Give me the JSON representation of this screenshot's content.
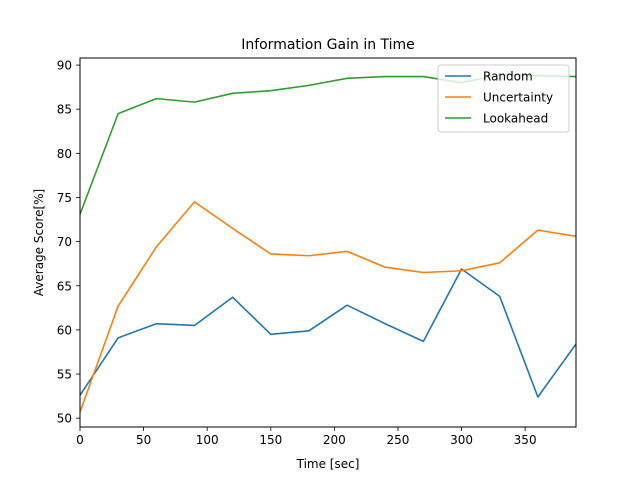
{
  "chart_data": {
    "type": "line",
    "title": "Information Gain in Time",
    "xlabel": "Time [sec]",
    "ylabel": "Average Score[%]",
    "xlim": [
      0,
      390
    ],
    "ylim": [
      49,
      90.8
    ],
    "x_ticks": [
      0,
      50,
      100,
      150,
      200,
      250,
      300,
      350
    ],
    "y_ticks": [
      50,
      55,
      60,
      65,
      70,
      75,
      80,
      85,
      90
    ],
    "grid": false,
    "legend_position": "top-right",
    "x": [
      0,
      30,
      60,
      90,
      120,
      150,
      180,
      210,
      240,
      270,
      300,
      330,
      360,
      390
    ],
    "series": [
      {
        "name": "Random",
        "color": "#1f77b4",
        "values": [
          52.6,
          59.1,
          60.7,
          60.5,
          63.7,
          59.5,
          59.9,
          62.8,
          60.7,
          58.7,
          66.9,
          63.8,
          52.4,
          58.4
        ]
      },
      {
        "name": "Uncertainty",
        "color": "#ff7f0e",
        "values": [
          50.7,
          62.7,
          69.4,
          74.5,
          71.5,
          68.6,
          68.4,
          68.9,
          67.1,
          66.5,
          66.7,
          67.6,
          71.3,
          70.6
        ]
      },
      {
        "name": "Lookahead",
        "color": "#2ca02c",
        "values": [
          73.1,
          84.5,
          86.2,
          85.8,
          86.8,
          87.1,
          87.7,
          88.5,
          88.7,
          88.7,
          88.0,
          88.9,
          88.8,
          88.7
        ]
      }
    ]
  }
}
